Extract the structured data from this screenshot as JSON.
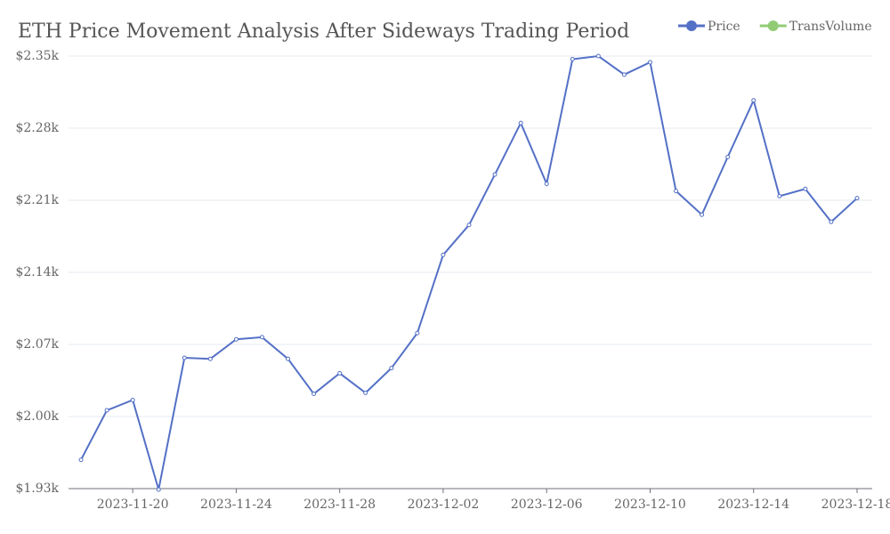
{
  "chart_data": {
    "type": "line",
    "title": "ETH Price Movement Analysis After Sideways Trading Period",
    "x": [
      "2023-11-18",
      "2023-11-19",
      "2023-11-20",
      "2023-11-21",
      "2023-11-22",
      "2023-11-23",
      "2023-11-24",
      "2023-11-25",
      "2023-11-26",
      "2023-11-27",
      "2023-11-28",
      "2023-11-29",
      "2023-11-30",
      "2023-12-01",
      "2023-12-02",
      "2023-12-03",
      "2023-12-04",
      "2023-12-05",
      "2023-12-06",
      "2023-12-07",
      "2023-12-08",
      "2023-12-09",
      "2023-12-10",
      "2023-12-11",
      "2023-12-12",
      "2023-12-13",
      "2023-12-14",
      "2023-12-15",
      "2023-12-16",
      "2023-12-17",
      "2023-12-18"
    ],
    "series": [
      {
        "name": "Price",
        "color": "#5470c6",
        "values": [
          1958,
          2006,
          2016,
          1929,
          2057,
          2056,
          2075,
          2077,
          2056,
          2022,
          2042,
          2023,
          2047,
          2081,
          2157,
          2186,
          2235,
          2285,
          2226,
          2347,
          2350,
          2332,
          2344,
          2219,
          2196,
          2252,
          2307,
          2214,
          2221,
          2189,
          2212
        ]
      },
      {
        "name": "TransVolume",
        "color": "#91cc75",
        "values": [
          null,
          null,
          null,
          null,
          null,
          null,
          null,
          null,
          null,
          null,
          null,
          null,
          null,
          null,
          null,
          null,
          null,
          null,
          null,
          null,
          null,
          null,
          null,
          null,
          null,
          null,
          null,
          null,
          null,
          null,
          null
        ]
      }
    ],
    "xticks": [
      "2023-11-20",
      "2023-11-24",
      "2023-11-28",
      "2023-12-02",
      "2023-12-06",
      "2023-12-10",
      "2023-12-14",
      "2023-12-18"
    ],
    "ylim": [
      1930,
      2350
    ],
    "yticks": [
      {
        "value": 1930,
        "label": "$1.93k"
      },
      {
        "value": 2000,
        "label": "$2.00k"
      },
      {
        "value": 2070,
        "label": "$2.07k"
      },
      {
        "value": 2140,
        "label": "$2.14k"
      },
      {
        "value": 2210,
        "label": "$2.21k"
      },
      {
        "value": 2280,
        "label": "$2.28k"
      },
      {
        "value": 2350,
        "label": "$2.35k"
      }
    ],
    "grid": true,
    "legend": "top-right"
  }
}
